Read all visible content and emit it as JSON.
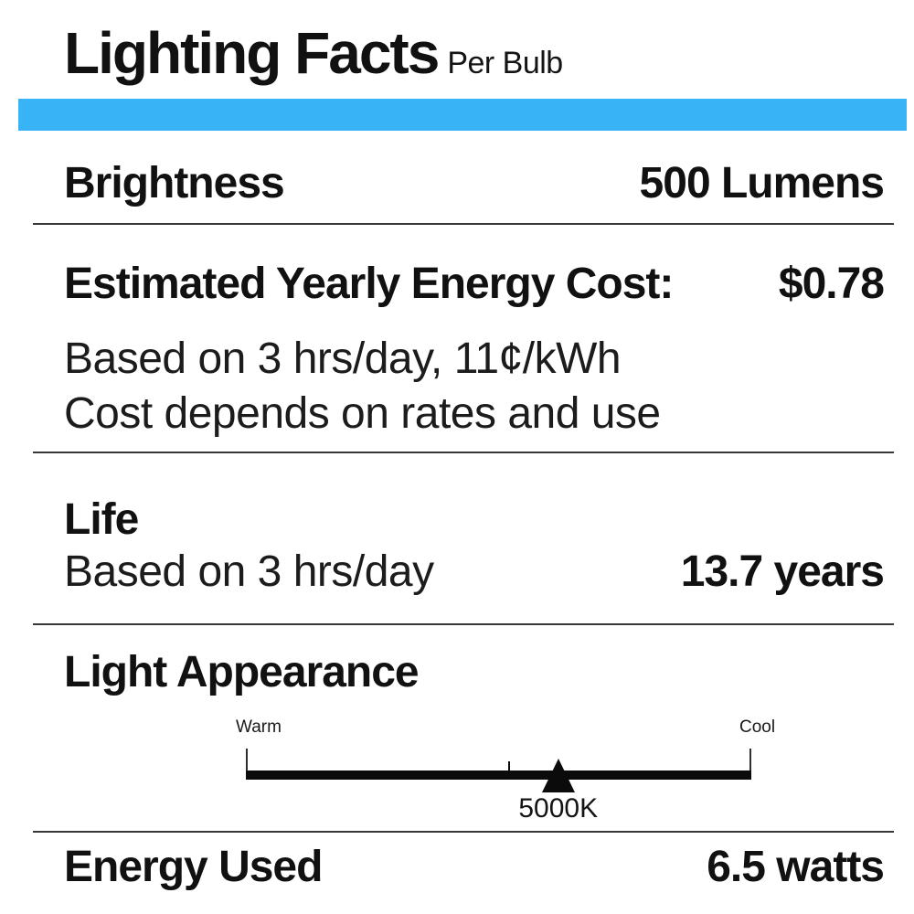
{
  "accent_color": "#38b3f5",
  "header": {
    "title": "Lighting Facts",
    "subtitle": "Per Bulb"
  },
  "brightness": {
    "label": "Brightness",
    "value": "500 Lumens"
  },
  "energy_cost": {
    "label": "Estimated Yearly Energy Cost:",
    "value": "$0.78",
    "note_line1": "Based on 3 hrs/day, 11¢/kWh",
    "note_line2": "Cost depends on rates and use"
  },
  "life": {
    "label": "Life",
    "basis": "Based on 3 hrs/day",
    "value": "13.7 years"
  },
  "light_appearance": {
    "label": "Light Appearance",
    "warm_label": "Warm",
    "cool_label": "Cool",
    "marker_value": "5000K",
    "marker_position_pct": 61.8
  },
  "energy_used": {
    "label": "Energy Used",
    "value": "6.5 watts"
  }
}
